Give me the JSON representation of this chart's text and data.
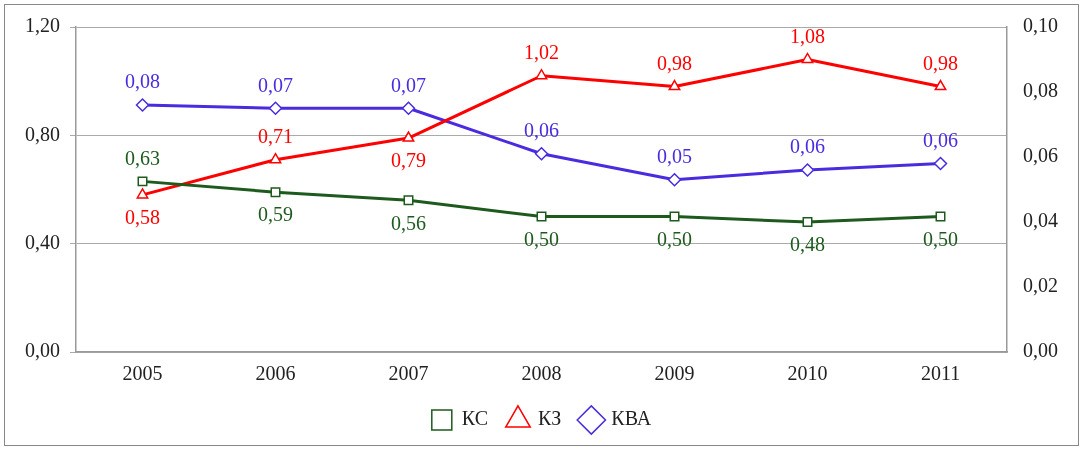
{
  "chart_data": {
    "type": "line",
    "categories": [
      "2005",
      "2006",
      "2007",
      "2008",
      "2009",
      "2010",
      "2011"
    ],
    "series": [
      {
        "name": "КС",
        "color": "#1e5a1e",
        "marker": "square",
        "values": [
          0.63,
          0.59,
          0.56,
          0.5,
          0.5,
          0.48,
          0.5
        ],
        "value_labels": [
          "0,63",
          "0,59",
          "0,56",
          "0,50",
          "0,50",
          "0,48",
          "0,50"
        ]
      },
      {
        "name": "КЗ",
        "color": "#ff0000",
        "marker": "triangle",
        "values": [
          0.58,
          0.71,
          0.79,
          1.02,
          0.98,
          1.08,
          0.98
        ],
        "value_labels": [
          "0,58",
          "0,71",
          "0,79",
          "1,02",
          "0,98",
          "1,08",
          "0,98"
        ]
      },
      {
        "name": "КВА",
        "color": "#4b2be0",
        "marker": "diamond",
        "axis": "y2",
        "values": [
          0.076,
          0.075,
          0.075,
          0.061,
          0.053,
          0.056,
          0.058
        ],
        "value_labels": [
          "0,08",
          "0,07",
          "0,07",
          "0,06",
          "0,05",
          "0,06",
          "0,06"
        ]
      }
    ],
    "ylim": [
      0,
      1.2
    ],
    "yticks": [
      {
        "value": 0,
        "label": "0,00"
      },
      {
        "value": 0.4,
        "label": "0,40"
      },
      {
        "value": 0.8,
        "label": "0,80"
      },
      {
        "value": 1.2,
        "label": "1,20"
      }
    ],
    "y2lim": [
      0,
      0.1
    ],
    "y2ticks": [
      {
        "value": 0,
        "label": "0,00"
      },
      {
        "value": 0.02,
        "label": "0,02"
      },
      {
        "value": 0.04,
        "label": "0,04"
      },
      {
        "value": 0.06,
        "label": "0,06"
      },
      {
        "value": 0.08,
        "label": "0,08"
      },
      {
        "value": 0.1,
        "label": "0,10"
      }
    ],
    "grid": "y",
    "legend": "bottom",
    "line_style": "solid"
  }
}
